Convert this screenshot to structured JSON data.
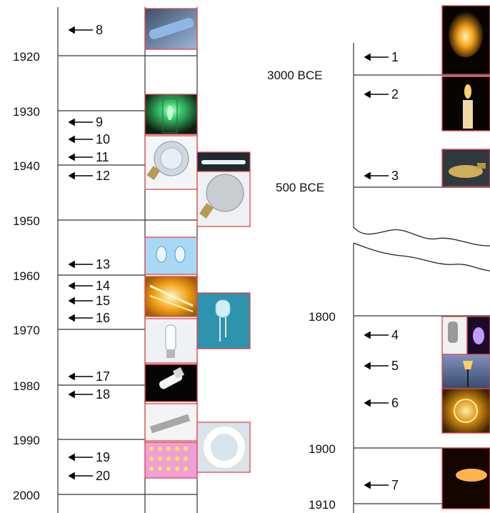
{
  "left_timeline": {
    "years": [
      "1920",
      "1930",
      "1940",
      "1950",
      "1960",
      "1970",
      "1980",
      "1990",
      "2000"
    ],
    "markers": [
      "8",
      "9",
      "10",
      "11",
      "12",
      "13",
      "14",
      "15",
      "16",
      "17",
      "18",
      "19",
      "20"
    ]
  },
  "right_timeline": {
    "eras": [
      "3000 BCE",
      "500 BCE",
      "1800",
      "1900",
      "1910"
    ],
    "markers": [
      "1",
      "2",
      "3",
      "4",
      "5",
      "6",
      "7"
    ]
  },
  "thumbnails": [
    {
      "id": "8",
      "icon": "blue-tube-lamp-icon",
      "bg": "#5a7d9e",
      "accent": "#8fb7e6"
    },
    {
      "id": "9",
      "icon": "green-glow-lamp-icon",
      "bg": "#0f2a16",
      "accent": "#3cd072"
    },
    {
      "id": "11",
      "icon": "reflector-lamp-icon",
      "bg": "#dfe6ee",
      "accent": "#9aa8b6"
    },
    {
      "id": "11b",
      "icon": "fluorescent-tube-icon",
      "bg": "#1d2a30",
      "accent": "#e6f2f4"
    },
    {
      "id": "12",
      "icon": "par-lamp-icon",
      "bg": "#eceff2",
      "accent": "#b8bcc0"
    },
    {
      "id": "13",
      "icon": "mini-bulbs-icon",
      "bg": "#8ec9ee",
      "accent": "#e8f6ff"
    },
    {
      "id": "14",
      "icon": "halogen-glow-icon",
      "bg": "#f2a11a",
      "accent": "#fff2a6"
    },
    {
      "id": "16",
      "icon": "led-icon",
      "bg": "#2e93ad",
      "accent": "#cfeef6"
    },
    {
      "id": "16b",
      "icon": "hid-lamp-icon",
      "bg": "#edf1f3",
      "accent": "#b2bcc2"
    },
    {
      "id": "17",
      "icon": "cfl-icon",
      "bg": "#050505",
      "accent": "#f4f4f4"
    },
    {
      "id": "18",
      "icon": "ballast-icon",
      "bg": "#f3f3f3",
      "accent": "#9a9a9a"
    },
    {
      "id": "18b",
      "icon": "circular-tube-icon",
      "bg": "#d7e4ea",
      "accent": "#ffffff"
    },
    {
      "id": "19",
      "icon": "led-panel-icon",
      "bg": "#e79ad2",
      "accent": "#ffe84a"
    },
    {
      "id": "1",
      "icon": "fire-icon",
      "bg": "#070300",
      "accent": "#f28a1a"
    },
    {
      "id": "2",
      "icon": "candle-icon",
      "bg": "#080402",
      "accent": "#ffd36b"
    },
    {
      "id": "3",
      "icon": "oil-lamp-icon",
      "bg": "#30393d",
      "accent": "#cfae5a"
    },
    {
      "id": "4a",
      "icon": "arc-lamp-icon",
      "bg": "#f1f1f1",
      "accent": "#8a8a8a"
    },
    {
      "id": "4b",
      "icon": "purple-lamp-icon",
      "bg": "#1a0b2a",
      "accent": "#c29bff"
    },
    {
      "id": "5",
      "icon": "gas-street-lamp-icon",
      "bg": "#4c5f85",
      "accent": "#ffcf62"
    },
    {
      "id": "6",
      "icon": "carbon-filament-bulb-icon",
      "bg": "#704700",
      "accent": "#ffd24a"
    },
    {
      "id": "7",
      "icon": "tungsten-filament-icon",
      "bg": "#150500",
      "accent": "#ffb34c"
    }
  ]
}
